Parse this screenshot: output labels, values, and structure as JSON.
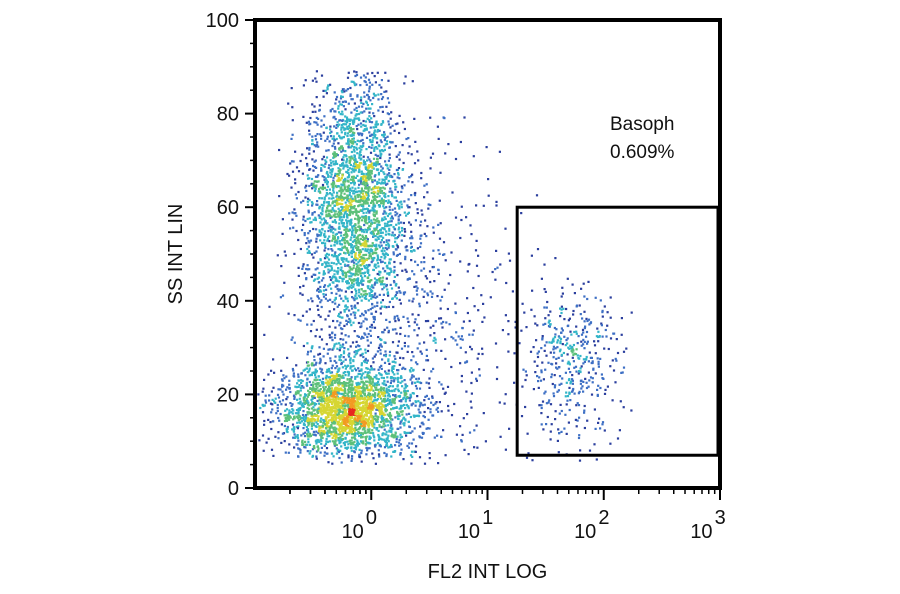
{
  "chart_data": {
    "type": "scatter",
    "subtype": "flow-cytometry-density",
    "xlabel": "FL2 INT LOG",
    "ylabel": "SS INT LIN",
    "x_scale": "log",
    "xlim": [
      0.1,
      1000
    ],
    "ylim": [
      0,
      100
    ],
    "x_ticks": [
      {
        "value": 1,
        "base": "10",
        "exp": "0"
      },
      {
        "value": 10,
        "base": "10",
        "exp": "1"
      },
      {
        "value": 100,
        "base": "10",
        "exp": "2"
      },
      {
        "value": 1000,
        "base": "10",
        "exp": "3"
      }
    ],
    "y_ticks": [
      0,
      20,
      40,
      60,
      80,
      100
    ],
    "density_colors": [
      "#2b3f9e",
      "#3d6fc4",
      "#33b5c8",
      "#5cc07a",
      "#d6d633",
      "#f29a22",
      "#e8261f"
    ],
    "populations": [
      {
        "center_x": 0.6,
        "center_y": 17,
        "spread_logx": 0.3,
        "spread_y": 5,
        "count": 2400
      },
      {
        "center_x": 0.7,
        "center_y": 60,
        "spread_logx": 0.22,
        "spread_y": 14,
        "count": 2600
      },
      {
        "center_x": 2.0,
        "center_y": 35,
        "spread_logx": 0.45,
        "spread_y": 20,
        "count": 700
      },
      {
        "center_x": 50,
        "center_y": 27,
        "spread_logx": 0.22,
        "spread_y": 8,
        "count": 420
      }
    ],
    "gates": [
      {
        "name": "Basoph",
        "percent": "0.609%",
        "x_range": [
          18,
          1000
        ],
        "y_range": [
          7,
          60
        ]
      }
    ]
  }
}
